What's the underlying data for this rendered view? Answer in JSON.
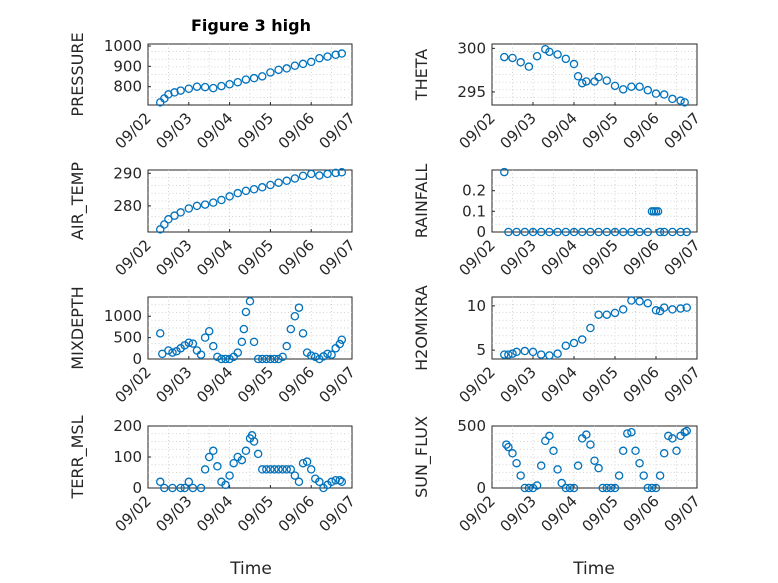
{
  "figure": {
    "title": "Figure 3 high",
    "marker_color": "#0072bd",
    "xlabel": "Time",
    "x_tick_labels": [
      "09/02",
      "09/03",
      "09/04",
      "09/05",
      "09/06",
      "09/07"
    ]
  },
  "chart_data": [
    {
      "type": "scatter",
      "title": "Figure 3 high",
      "ylabel": "PRESSURE",
      "ylim": [
        710,
        1010
      ],
      "yticks": [
        800,
        900,
        1000
      ],
      "ytick_labels": [
        "800",
        "900",
        "1000"
      ],
      "xlim": [
        0,
        5
      ],
      "grid": true,
      "x": [
        0.3,
        0.4,
        0.5,
        0.65,
        0.8,
        1.0,
        1.2,
        1.4,
        1.6,
        1.8,
        2.0,
        2.2,
        2.4,
        2.6,
        2.8,
        3.0,
        3.2,
        3.4,
        3.6,
        3.8,
        4.0,
        4.2,
        4.4,
        4.6,
        4.75
      ],
      "values": [
        723,
        742,
        762,
        772,
        781,
        790,
        800,
        798,
        793,
        803,
        812,
        822,
        835,
        842,
        851,
        870,
        883,
        890,
        903,
        912,
        922,
        940,
        948,
        957,
        963
      ]
    },
    {
      "type": "scatter",
      "ylabel": "THETA",
      "ylim": [
        293.5,
        300.5
      ],
      "yticks": [
        295,
        300
      ],
      "ytick_labels": [
        "295",
        "300"
      ],
      "xlim": [
        0,
        5
      ],
      "grid": true,
      "x": [
        0.3,
        0.5,
        0.7,
        0.9,
        1.1,
        1.3,
        1.4,
        1.6,
        1.8,
        2.0,
        2.1,
        2.2,
        2.3,
        2.5,
        2.6,
        2.8,
        3.0,
        3.2,
        3.4,
        3.6,
        3.8,
        4.0,
        4.2,
        4.4,
        4.6,
        4.7
      ],
      "values": [
        299.0,
        298.9,
        298.4,
        297.9,
        299.1,
        299.9,
        299.6,
        299.3,
        298.8,
        298.2,
        296.8,
        296.0,
        296.2,
        296.2,
        296.7,
        296.3,
        295.7,
        295.3,
        295.6,
        295.6,
        295.2,
        294.8,
        294.7,
        294.2,
        294.0,
        293.8
      ]
    },
    {
      "type": "scatter",
      "ylabel": "AIR_TEMP",
      "ylim": [
        272,
        291
      ],
      "yticks": [
        280,
        290
      ],
      "ytick_labels": [
        "280",
        "290"
      ],
      "xlim": [
        0,
        5
      ],
      "grid": true,
      "x": [
        0.3,
        0.4,
        0.5,
        0.65,
        0.8,
        1.0,
        1.2,
        1.4,
        1.6,
        1.8,
        2.0,
        2.2,
        2.4,
        2.6,
        2.8,
        3.0,
        3.2,
        3.4,
        3.6,
        3.8,
        4.0,
        4.2,
        4.4,
        4.6,
        4.75
      ],
      "values": [
        272.8,
        274.3,
        275.9,
        277.0,
        278.0,
        279.2,
        280.0,
        280.4,
        281.0,
        281.8,
        282.9,
        283.9,
        284.6,
        285.1,
        285.7,
        286.4,
        287.1,
        287.7,
        288.4,
        289.2,
        289.8,
        289.3,
        289.8,
        290.1,
        290.3
      ]
    },
    {
      "type": "scatter",
      "ylabel": "RAINFALL",
      "ylim": [
        0,
        0.3
      ],
      "yticks": [
        0,
        0.1,
        0.2
      ],
      "ytick_labels": [
        "0",
        "0.1",
        "0.2"
      ],
      "xlim": [
        0,
        5
      ],
      "grid": true,
      "x": [
        0.3,
        0.4,
        0.6,
        0.8,
        1.0,
        1.2,
        1.4,
        1.6,
        1.8,
        2.0,
        2.2,
        2.4,
        2.6,
        2.8,
        3.0,
        3.2,
        3.4,
        3.6,
        3.8,
        3.9,
        3.95,
        4.0,
        4.05,
        4.1,
        4.2,
        4.4,
        4.6,
        4.75
      ],
      "values": [
        0.29,
        0,
        0,
        0,
        0,
        0,
        0,
        0,
        0,
        0,
        0,
        0,
        0,
        0,
        0,
        0,
        0,
        0,
        0,
        0.1,
        0.1,
        0.1,
        0.1,
        0,
        0,
        0,
        0,
        0
      ]
    },
    {
      "type": "scatter",
      "ylabel": "MIXDEPTH",
      "ylim": [
        0,
        1450
      ],
      "yticks": [
        0,
        500,
        1000
      ],
      "ytick_labels": [
        "0",
        "500",
        "1000"
      ],
      "xlim": [
        0,
        5
      ],
      "grid": true,
      "x": [
        0.3,
        0.35,
        0.5,
        0.6,
        0.7,
        0.8,
        0.9,
        1.0,
        1.1,
        1.2,
        1.3,
        1.4,
        1.5,
        1.6,
        1.7,
        1.8,
        1.9,
        2.0,
        2.1,
        2.2,
        2.3,
        2.35,
        2.4,
        2.5,
        2.6,
        2.7,
        2.8,
        2.9,
        3.0,
        3.1,
        3.2,
        3.3,
        3.4,
        3.5,
        3.6,
        3.7,
        3.8,
        3.9,
        4.0,
        4.1,
        4.2,
        4.3,
        4.4,
        4.5,
        4.6,
        4.7,
        4.75
      ],
      "values": [
        600,
        120,
        200,
        150,
        180,
        250,
        320,
        380,
        360,
        200,
        100,
        500,
        650,
        300,
        50,
        0,
        0,
        0,
        50,
        150,
        400,
        700,
        1100,
        1350,
        400,
        0,
        0,
        0,
        0,
        0,
        0,
        50,
        300,
        700,
        1000,
        1200,
        600,
        150,
        80,
        50,
        0,
        60,
        120,
        100,
        250,
        350,
        450
      ]
    },
    {
      "type": "scatter",
      "ylabel": "H2OMIXRA",
      "ylim": [
        4,
        11
      ],
      "yticks": [
        5,
        10
      ],
      "ytick_labels": [
        "5",
        "10"
      ],
      "xlim": [
        0,
        5
      ],
      "grid": true,
      "x": [
        0.3,
        0.4,
        0.5,
        0.6,
        0.8,
        1.0,
        1.2,
        1.4,
        1.6,
        1.8,
        2.0,
        2.2,
        2.4,
        2.6,
        2.8,
        3.0,
        3.2,
        3.4,
        3.6,
        3.8,
        4.0,
        4.1,
        4.2,
        4.4,
        4.6,
        4.75
      ],
      "values": [
        4.5,
        4.5,
        4.6,
        4.8,
        4.9,
        4.8,
        4.5,
        4.4,
        4.6,
        5.5,
        5.8,
        6.2,
        7.5,
        9.0,
        9.0,
        9.2,
        9.6,
        10.6,
        10.5,
        10.3,
        9.5,
        9.4,
        9.8,
        9.6,
        9.7,
        9.8
      ]
    },
    {
      "type": "scatter",
      "ylabel": "TERR_MSL",
      "ylim": [
        0,
        200
      ],
      "yticks": [
        0,
        100,
        200
      ],
      "ytick_labels": [
        "0",
        "100",
        "200"
      ],
      "xlim": [
        0,
        5
      ],
      "grid": true,
      "x": [
        0.3,
        0.4,
        0.6,
        0.8,
        0.9,
        1.0,
        1.1,
        1.3,
        1.4,
        1.5,
        1.6,
        1.7,
        1.8,
        1.9,
        2.0,
        2.1,
        2.2,
        2.3,
        2.4,
        2.5,
        2.55,
        2.6,
        2.7,
        2.8,
        2.9,
        3.0,
        3.1,
        3.2,
        3.3,
        3.4,
        3.5,
        3.6,
        3.7,
        3.8,
        3.9,
        4.0,
        4.1,
        4.2,
        4.3,
        4.4,
        4.5,
        4.6,
        4.7,
        4.75
      ],
      "values": [
        20,
        0,
        0,
        0,
        0,
        20,
        0,
        0,
        60,
        100,
        120,
        70,
        20,
        10,
        40,
        80,
        100,
        90,
        120,
        160,
        170,
        150,
        110,
        60,
        60,
        60,
        60,
        60,
        60,
        60,
        60,
        40,
        20,
        80,
        85,
        60,
        30,
        20,
        0,
        10,
        20,
        25,
        25,
        20
      ]
    },
    {
      "type": "scatter",
      "ylabel": "SUN_FLUX",
      "ylim": [
        0,
        500
      ],
      "yticks": [
        0,
        500
      ],
      "ytick_labels": [
        "0",
        "500"
      ],
      "xlim": [
        0,
        5
      ],
      "grid": true,
      "x": [
        0.35,
        0.4,
        0.5,
        0.6,
        0.7,
        0.8,
        0.9,
        1.0,
        1.1,
        1.2,
        1.3,
        1.4,
        1.5,
        1.6,
        1.7,
        1.8,
        1.9,
        2.0,
        2.1,
        2.2,
        2.3,
        2.4,
        2.5,
        2.6,
        2.7,
        2.8,
        2.9,
        3.0,
        3.1,
        3.2,
        3.3,
        3.4,
        3.5,
        3.6,
        3.7,
        3.8,
        3.9,
        4.0,
        4.1,
        4.2,
        4.3,
        4.4,
        4.5,
        4.6,
        4.7,
        4.75
      ],
      "values": [
        350,
        330,
        280,
        200,
        100,
        0,
        0,
        0,
        20,
        180,
        380,
        420,
        300,
        150,
        40,
        0,
        0,
        0,
        180,
        400,
        430,
        350,
        220,
        160,
        0,
        0,
        0,
        0,
        100,
        300,
        440,
        450,
        300,
        200,
        100,
        0,
        0,
        0,
        100,
        280,
        420,
        400,
        300,
        420,
        450,
        460
      ]
    }
  ]
}
